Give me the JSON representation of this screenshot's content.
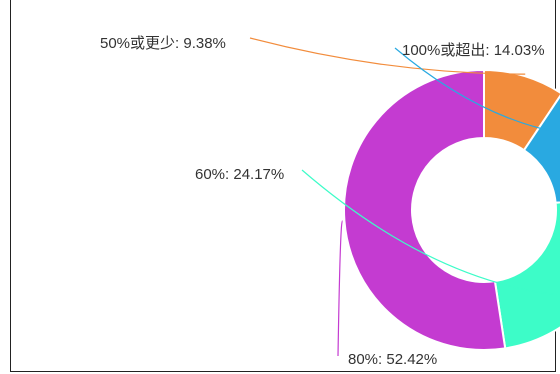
{
  "chart_data": {
    "type": "pie",
    "donut": true,
    "categories": [
      "50%或更少",
      "100%或超出",
      "60%",
      "80%"
    ],
    "values": [
      9.38,
      14.03,
      24.17,
      52.42
    ],
    "labels": [
      "50%或更少: 9.38%",
      "100%或超出: 14.03%",
      "60%: 24.17%",
      "80%: 52.42%"
    ],
    "colors": [
      "#f28c3c",
      "#29a9e1",
      "#3dfcc8",
      "#c43bd1"
    ],
    "legend": "none"
  }
}
